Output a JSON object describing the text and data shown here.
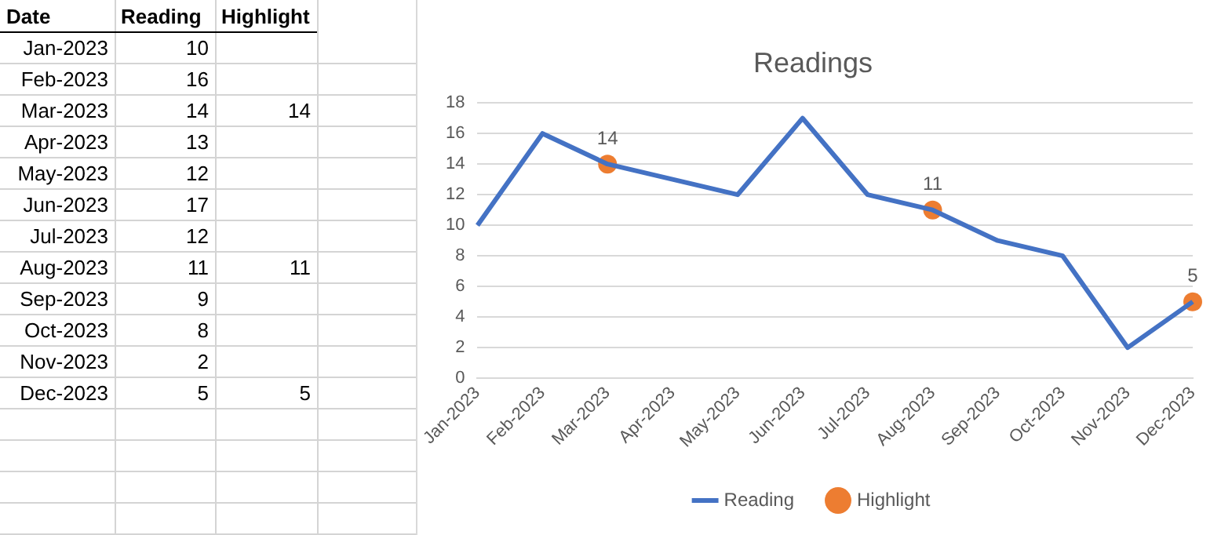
{
  "chart_data": [
    {
      "type": "other",
      "xlabel": "Date",
      "data_labels": true,
      "categories": [
        "Jan-2023",
        "Feb-2023",
        "Mar-2023",
        "Apr-2023",
        "May-2023",
        "Jun-2023",
        "Jul-2023",
        "Aug-2023",
        "Sep-2023",
        "Oct-2023",
        "Nov-2023",
        "Dec-2023"
      ],
      "series": [
        {
          "name": "Reading",
          "values": [
            10,
            16,
            14,
            13,
            12,
            17,
            12,
            11,
            9,
            8,
            2,
            5
          ]
        },
        {
          "name": "Highlight",
          "values": [
            null,
            null,
            14,
            null,
            null,
            null,
            null,
            11,
            null,
            null,
            null,
            5
          ]
        }
      ]
    },
    {
      "type": "line",
      "title": "Readings",
      "categories": [
        "Jan-2023",
        "Feb-2023",
        "Mar-2023",
        "Apr-2023",
        "May-2023",
        "Jun-2023",
        "Jul-2023",
        "Aug-2023",
        "Sep-2023",
        "Oct-2023",
        "Nov-2023",
        "Dec-2023"
      ],
      "series": [
        {
          "name": "Reading",
          "type": "line",
          "marker": "none",
          "color": "#4472c4",
          "values": [
            10,
            16,
            14,
            13,
            12,
            17,
            12,
            11,
            9,
            8,
            2,
            5
          ]
        },
        {
          "name": "Highlight",
          "type": "scatter",
          "marker": "circle",
          "color": "#ed7d31",
          "values": [
            null,
            null,
            14,
            null,
            null,
            null,
            null,
            11,
            null,
            null,
            null,
            5
          ],
          "value_labels": [
            null,
            null,
            "14",
            null,
            null,
            null,
            null,
            "11",
            null,
            null,
            null,
            "5"
          ]
        }
      ],
      "ylim": [
        0,
        18
      ],
      "yticks": [
        0,
        2,
        4,
        6,
        8,
        10,
        12,
        14,
        16,
        18
      ],
      "grid": "y",
      "legend": "bottom"
    }
  ]
}
